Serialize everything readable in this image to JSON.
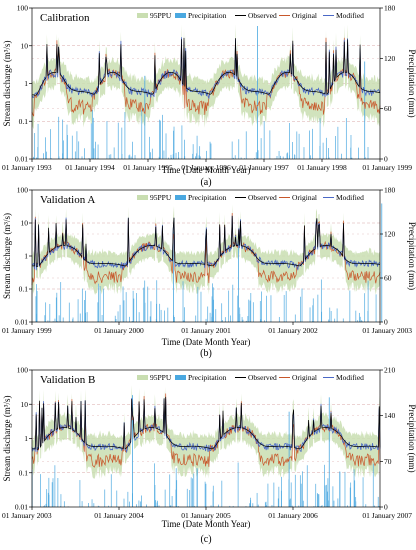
{
  "legend_labels": [
    "95PPU",
    "Precipitation",
    "Observed",
    "Original",
    "Modified"
  ],
  "colors": {
    "ppu_band": "#c9deb1",
    "precipitation": "#4aa8e0",
    "observed": "#000000",
    "original": "#c8572b",
    "modified": "#4a68c6",
    "grid": "#d8a7a7"
  },
  "chart_data": [
    {
      "type": "line",
      "title": "Calibration",
      "panel_label": "(a)",
      "xlabel": "Time (Date Month Year)",
      "ylabel": "Stream discharge (m³/s)",
      "y2label": "Precipitation (mm)",
      "y_scale": "log",
      "ylim": [
        0.01,
        100
      ],
      "yticks": [
        "0.01",
        "0.1",
        "1",
        "10",
        "100"
      ],
      "y2lim": [
        0,
        180
      ],
      "y2ticks": [
        "0",
        "60",
        "120",
        "180"
      ],
      "xlim": [
        "1993-01-01",
        "1999-01-01"
      ],
      "xticks": [
        "01 January 1993",
        "01 January 1994",
        "01 January 1995",
        "01 January 1996",
        "01 January 1997",
        "01 January 1998",
        "01 January 1999"
      ],
      "legend": "top",
      "grid": "horizontal dashed",
      "series": [
        {
          "name": "95PPU"
        },
        {
          "name": "Precipitation"
        },
        {
          "name": "Observed"
        },
        {
          "name": "Original"
        },
        {
          "name": "Modified"
        }
      ]
    },
    {
      "type": "line",
      "title": "Validation A",
      "panel_label": "(b)",
      "xlabel": "Time (Date Month Year)",
      "ylabel": "Stream discharge (m³/s)",
      "y2label": "Precipitation (mm)",
      "y_scale": "log",
      "ylim": [
        0.01,
        100
      ],
      "yticks": [
        "0.01",
        "0.1",
        "1",
        "10",
        "100"
      ],
      "y2lim": [
        0,
        180
      ],
      "y2ticks": [
        "0",
        "60",
        "120",
        "180"
      ],
      "xlim": [
        "1999-01-01",
        "2003-01-01"
      ],
      "xticks": [
        "01 January 1999",
        "01 January 2000",
        "01 January 2001",
        "01 January 2002",
        "01 January 2003"
      ],
      "legend": "top",
      "grid": "horizontal dashed",
      "series": [
        {
          "name": "95PPU"
        },
        {
          "name": "Precipitation"
        },
        {
          "name": "Observed"
        },
        {
          "name": "Original"
        },
        {
          "name": "Modified"
        }
      ]
    },
    {
      "type": "line",
      "title": "Validation B",
      "panel_label": "(c)",
      "xlabel": "Time (Date Month Year)",
      "ylabel": "Stream discharge (m³/s)",
      "y2label": "Precipitation (mm)",
      "y_scale": "log",
      "ylim": [
        0.01,
        100
      ],
      "yticks": [
        "0.01",
        "0.1",
        "1",
        "10",
        "100"
      ],
      "y2lim": [
        0,
        210
      ],
      "y2ticks": [
        "0",
        "70",
        "140",
        "210"
      ],
      "xlim": [
        "2003-01-01",
        "2007-01-01"
      ],
      "xticks": [
        "01 January 2003",
        "01 January 2004",
        "01 January 2005",
        "01 January 2006",
        "01 January 2007"
      ],
      "legend": "top",
      "grid": "horizontal dashed",
      "series": [
        {
          "name": "95PPU"
        },
        {
          "name": "Precipitation"
        },
        {
          "name": "Observed"
        },
        {
          "name": "Original"
        },
        {
          "name": "Modified"
        }
      ]
    }
  ]
}
